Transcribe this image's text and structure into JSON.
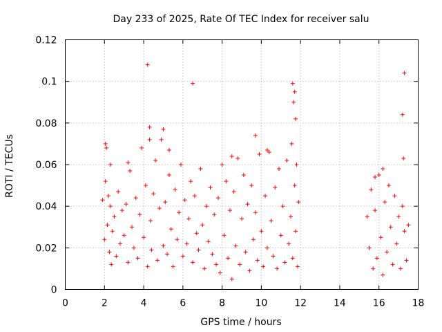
{
  "chart_data": {
    "type": "scatter",
    "title": "Day 233 of 2025, Rate Of TEC Index for receiver salu",
    "xlabel": "GPS time / hours",
    "ylabel": "ROTI / TECUs",
    "xlim": [
      0,
      18
    ],
    "ylim": [
      0,
      0.12
    ],
    "x_ticks": [
      "0",
      "2",
      "4",
      "6",
      "8",
      "10",
      "12",
      "14",
      "16",
      "18"
    ],
    "y_ticks": [
      "0",
      "0.02",
      "0.04",
      "0.06",
      "0.08",
      "0.1",
      "0.12"
    ],
    "grid": true,
    "marker": "+",
    "color": "#ff0000",
    "series": [
      {
        "name": "ROTI",
        "x": [
          1.9,
          2.0,
          2.05,
          2.1,
          2.15,
          2.2,
          2.25,
          2.3,
          2.35,
          2.4,
          2.5,
          2.6,
          2.7,
          2.8,
          2.9,
          3.0,
          3.1,
          3.2,
          3.3,
          3.4,
          3.5,
          3.6,
          3.7,
          3.8,
          3.9,
          4.0,
          4.1,
          4.2,
          4.3,
          4.35,
          4.4,
          4.5,
          4.6,
          4.7,
          4.8,
          4.9,
          5.0,
          5.1,
          5.2,
          5.3,
          5.4,
          5.5,
          5.6,
          5.7,
          5.8,
          5.9,
          6.0,
          6.1,
          6.2,
          6.3,
          6.4,
          6.5,
          6.6,
          6.7,
          6.8,
          6.9,
          7.0,
          7.1,
          7.2,
          7.3,
          7.4,
          7.5,
          7.6,
          7.7,
          7.8,
          7.9,
          8.0,
          8.1,
          8.2,
          8.3,
          8.4,
          8.5,
          8.6,
          8.7,
          8.8,
          8.9,
          9.0,
          9.1,
          9.2,
          9.3,
          9.4,
          9.5,
          9.6,
          9.7,
          9.8,
          9.9,
          10.0,
          10.1,
          10.2,
          10.3,
          10.4,
          10.5,
          10.6,
          10.7,
          10.8,
          10.9,
          11.0,
          11.1,
          11.2,
          11.3,
          11.4,
          11.5,
          11.55,
          11.6,
          11.65,
          11.7,
          11.75,
          11.8,
          11.85,
          11.9,
          15.4,
          15.5,
          15.6,
          15.7,
          15.8,
          15.9,
          16.0,
          16.1,
          16.2,
          16.3,
          16.4,
          16.5,
          16.6,
          16.7,
          16.8,
          16.9,
          17.0,
          17.1,
          17.2,
          17.25,
          17.3,
          17.4,
          17.5,
          2.05,
          2.3,
          3.2,
          4.2,
          4.3,
          5.0,
          5.3,
          6.5,
          8.5,
          9.7,
          10.3,
          11.6,
          11.7,
          11.75,
          15.8,
          16.2,
          17.2,
          17.3
        ],
        "y": [
          0.043,
          0.024,
          0.052,
          0.068,
          0.031,
          0.045,
          0.018,
          0.04,
          0.012,
          0.028,
          0.035,
          0.016,
          0.047,
          0.022,
          0.038,
          0.026,
          0.041,
          0.013,
          0.057,
          0.03,
          0.02,
          0.044,
          0.015,
          0.036,
          0.068,
          0.025,
          0.05,
          0.011,
          0.078,
          0.033,
          0.019,
          0.046,
          0.062,
          0.014,
          0.039,
          0.072,
          0.021,
          0.042,
          0.017,
          0.055,
          0.029,
          0.011,
          0.048,
          0.024,
          0.037,
          0.06,
          0.016,
          0.043,
          0.022,
          0.034,
          0.052,
          0.013,
          0.045,
          0.027,
          0.019,
          0.058,
          0.031,
          0.01,
          0.04,
          0.023,
          0.049,
          0.017,
          0.036,
          0.012,
          0.044,
          0.008,
          0.06,
          0.026,
          0.052,
          0.015,
          0.038,
          0.005,
          0.047,
          0.021,
          0.063,
          0.012,
          0.034,
          0.055,
          0.018,
          0.041,
          0.009,
          0.05,
          0.024,
          0.037,
          0.014,
          0.065,
          0.028,
          0.011,
          0.045,
          0.02,
          0.066,
          0.033,
          0.016,
          0.049,
          0.01,
          0.058,
          0.026,
          0.04,
          0.013,
          0.062,
          0.022,
          0.035,
          0.07,
          0.015,
          0.09,
          0.05,
          0.028,
          0.06,
          0.011,
          0.042,
          0.035,
          0.02,
          0.048,
          0.01,
          0.038,
          0.015,
          0.055,
          0.025,
          0.007,
          0.042,
          0.018,
          0.05,
          0.03,
          0.012,
          0.045,
          0.022,
          0.035,
          0.01,
          0.04,
          0.063,
          0.028,
          0.014,
          0.031,
          0.07,
          0.06,
          0.061,
          0.108,
          0.072,
          0.077,
          0.067,
          0.099,
          0.064,
          0.074,
          0.067,
          0.099,
          0.095,
          0.082,
          0.054,
          0.058,
          0.084,
          0.104
        ]
      }
    ]
  }
}
